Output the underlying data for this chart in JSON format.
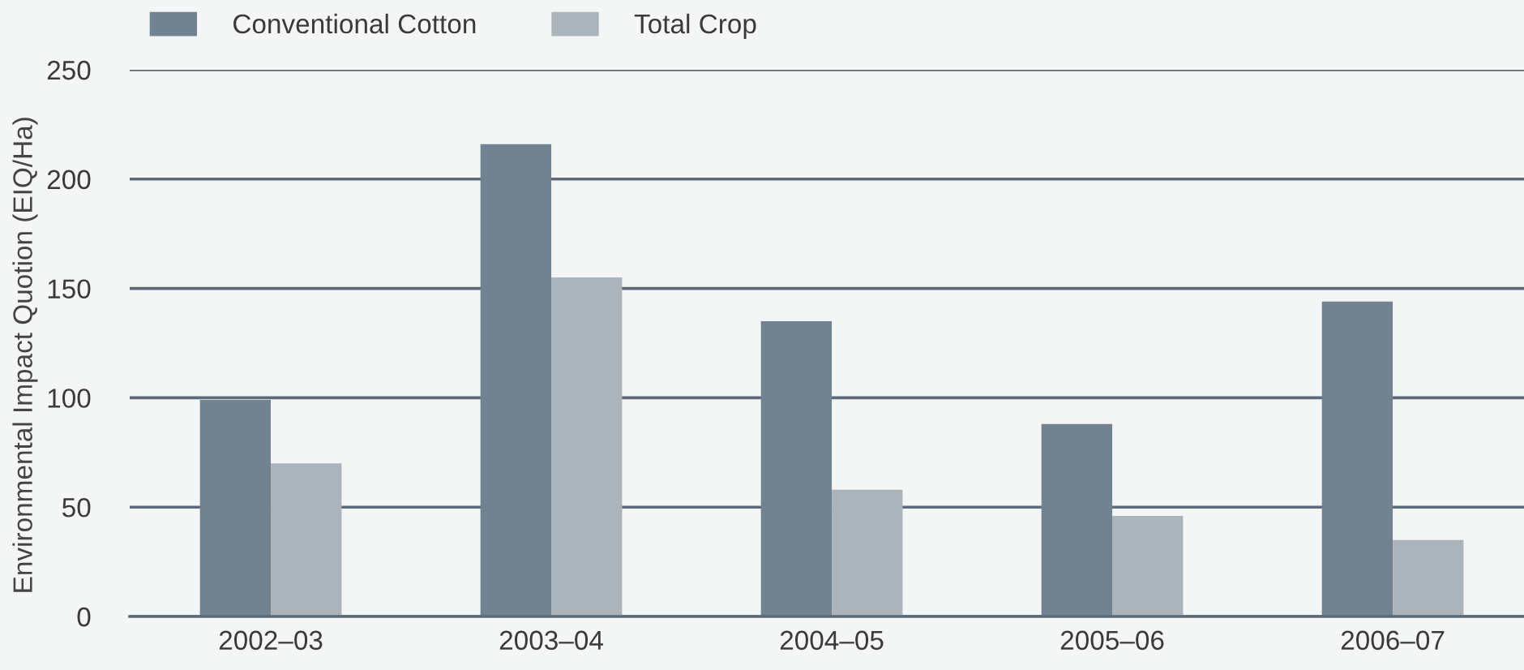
{
  "chart_data": {
    "type": "bar",
    "ylabel": "Environmental Impact Quotion (EIQ/Ha)",
    "categories": [
      "2002–03",
      "2003–04",
      "2004–05",
      "2005–06",
      "2006–07"
    ],
    "series": [
      {
        "name": "Conventional Cotton",
        "color": "#718290",
        "values": [
          99,
          216,
          135,
          88,
          144
        ]
      },
      {
        "name": "Total Crop",
        "color": "#aab4ba",
        "values": [
          70,
          155,
          58,
          46,
          35
        ]
      }
    ],
    "ylim": [
      0,
      250
    ],
    "yticks": [
      0,
      50,
      100,
      150,
      200,
      250
    ],
    "grid": "y",
    "legend": "top left"
  }
}
